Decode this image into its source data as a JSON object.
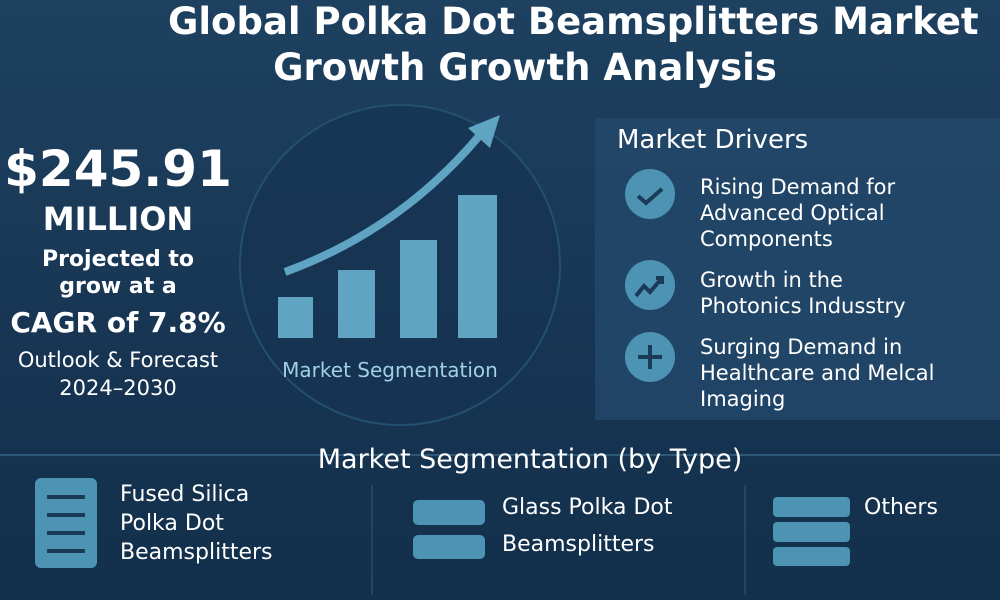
{
  "header": {
    "title_lines": [
      "Global Polka Dot Beamsplitters Market",
      "Growth Growth Analysis"
    ]
  },
  "summary": {
    "value": "$245.91",
    "unit": "MILLION",
    "lines": [
      "Projected to",
      "grow at a",
      "CAGR of 7.8%",
      "Outlook & Forecast",
      "2024–2030"
    ]
  },
  "chart_caption": "Market Segmentation",
  "drivers": {
    "title": "Market Drivers",
    "items": [
      {
        "lines": [
          "Rising Demand for",
          "Advanced Optical",
          "Components"
        ]
      },
      {
        "lines": [
          "Growth in the",
          "Photonics Indusstry"
        ]
      },
      {
        "lines": [
          "Surging Demand in",
          "Healthcare and Melcal",
          "Imaging"
        ]
      }
    ]
  },
  "segmentation": {
    "title": "Market Segmentation (by Type)",
    "items": [
      {
        "lines": [
          "Fused Silica",
          "Polka Dot",
          "Beamsplitters"
        ]
      },
      {
        "lines": [
          "Glass Polka Dot",
          "Beamsplitters"
        ]
      },
      {
        "lines": [
          "Others"
        ]
      }
    ]
  }
}
